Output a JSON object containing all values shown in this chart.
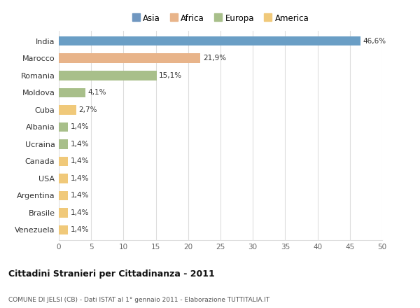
{
  "countries": [
    "India",
    "Marocco",
    "Romania",
    "Moldova",
    "Cuba",
    "Albania",
    "Ucraina",
    "Canada",
    "USA",
    "Argentina",
    "Brasile",
    "Venezuela"
  ],
  "values": [
    46.6,
    21.9,
    15.1,
    4.1,
    2.7,
    1.4,
    1.4,
    1.4,
    1.4,
    1.4,
    1.4,
    1.4
  ],
  "labels": [
    "46,6%",
    "21,9%",
    "15,1%",
    "4,1%",
    "2,7%",
    "1,4%",
    "1,4%",
    "1,4%",
    "1,4%",
    "1,4%",
    "1,4%",
    "1,4%"
  ],
  "colors": [
    "#6a9ec5",
    "#e8b48a",
    "#a8bf8a",
    "#a8bf8a",
    "#f0c97a",
    "#a8bf8a",
    "#a8bf8a",
    "#f0c97a",
    "#f0c97a",
    "#f0c97a",
    "#f0c97a",
    "#f0c97a"
  ],
  "categories": [
    "Asia",
    "Africa",
    "Europa",
    "America"
  ],
  "legend_colors": [
    "#7097c0",
    "#e8b48a",
    "#a8bf8a",
    "#f0c97a"
  ],
  "xlim": [
    0,
    50
  ],
  "xticks": [
    0,
    5,
    10,
    15,
    20,
    25,
    30,
    35,
    40,
    45,
    50
  ],
  "title": "Cittadini Stranieri per Cittadinanza - 2011",
  "subtitle": "COMUNE DI JELSI (CB) - Dati ISTAT al 1° gennaio 2011 - Elaborazione TUTTITALIA.IT",
  "background_color": "#ffffff",
  "grid_color": "#dddddd"
}
